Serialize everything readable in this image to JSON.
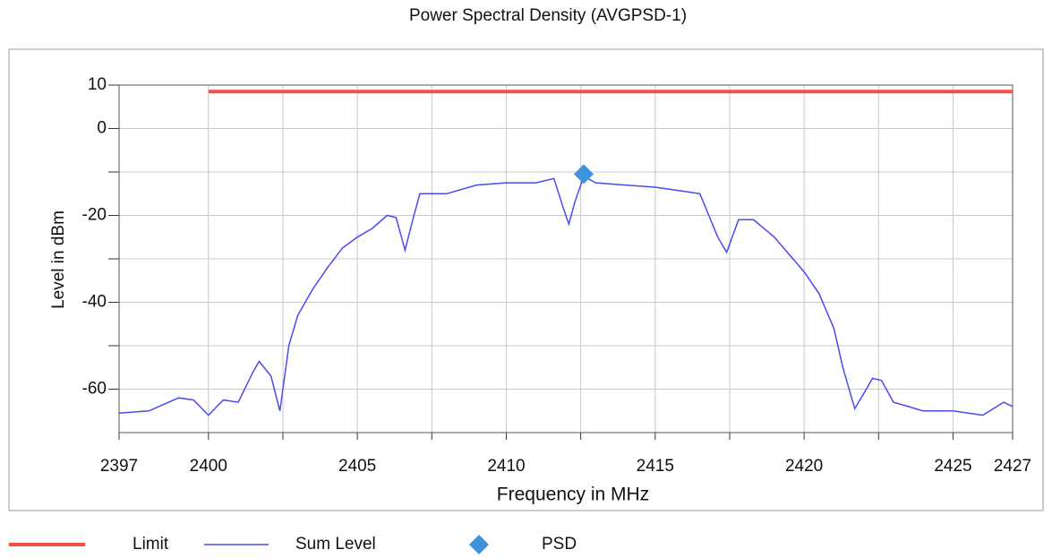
{
  "chart_data": {
    "type": "line",
    "title": "Power Spectral Density (AVGPSD-1)",
    "xlabel": "Frequency in MHz",
    "ylabel": "Level in dBm",
    "xlim": [
      2397,
      2427
    ],
    "xticks": [
      2397,
      2400,
      2405,
      2410,
      2415,
      2420,
      2425,
      2427
    ],
    "xminor_ticks": [
      2402.5,
      2407.5,
      2412.5,
      2417.5,
      2422.5
    ],
    "ylim": [
      -70,
      10
    ],
    "yticks": [
      -60,
      -40,
      -20,
      0,
      10
    ],
    "yminor_ticks": [
      -50,
      -30,
      -10
    ],
    "grid": true,
    "legend": "bottom",
    "series": [
      {
        "name": "Limit",
        "color": "#f0504a",
        "x": [
          2400,
          2427
        ],
        "values": [
          8.5,
          8.5
        ]
      },
      {
        "name": "Sum Level",
        "color": "#4a4af0",
        "x": [
          2397,
          2398,
          2399,
          2399.5,
          2400,
          2400.5,
          2401,
          2401.5,
          2401.7,
          2402.1,
          2402.4,
          2402.7,
          2403,
          2403.5,
          2404,
          2404.5,
          2405,
          2405.5,
          2406,
          2406.3,
          2406.6,
          2406.9,
          2407.1,
          2408,
          2409,
          2410,
          2411,
          2411.6,
          2411.9,
          2412.1,
          2412.3,
          2412.6,
          2413,
          2414,
          2415,
          2416,
          2416.5,
          2416.8,
          2417.1,
          2417.4,
          2417.8,
          2418.3,
          2419,
          2419.5,
          2420,
          2420.5,
          2421,
          2421.3,
          2421.7,
          2422,
          2422.3,
          2422.6,
          2423,
          2423.5,
          2424,
          2425,
          2426,
          2426.7,
          2427
        ],
        "values": [
          -65.5,
          -65,
          -62,
          -62.5,
          -66,
          -62.5,
          -63,
          -56,
          -53.6,
          -57,
          -65,
          -50,
          -43,
          -37,
          -32,
          -27.5,
          -25,
          -23,
          -20,
          -20.5,
          -28,
          -20,
          -15,
          -15,
          -13,
          -12.5,
          -12.5,
          -11.5,
          -18,
          -22,
          -17,
          -11,
          -12.5,
          -13,
          -13.5,
          -14.5,
          -15,
          -20,
          -25,
          -28.5,
          -21,
          -21,
          -25,
          -29,
          -33,
          -38,
          -46,
          -55,
          -64.5,
          -61,
          -57.5,
          -58,
          -63,
          -64,
          -65,
          -65,
          -66,
          -63,
          -64
        ]
      },
      {
        "name": "PSD",
        "color": "#3d94dc",
        "marker": "diamond",
        "x": [
          2412.6
        ],
        "values": [
          -10.5
        ]
      }
    ]
  }
}
